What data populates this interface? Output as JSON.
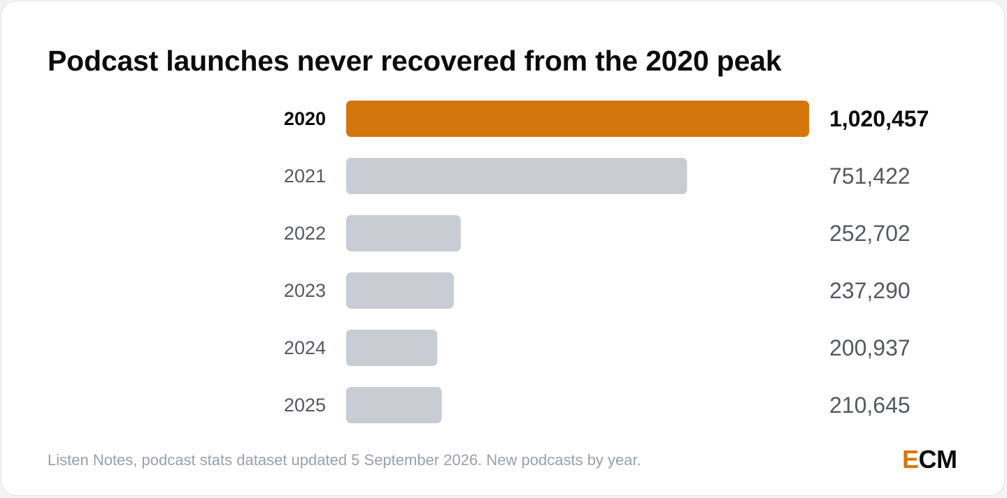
{
  "title": "Podcast launches never recovered from the 2020 peak",
  "footer": "Listen Notes, podcast stats dataset updated 5 September 2026. New podcasts by year.",
  "logo": {
    "first": "E",
    "rest": "CM"
  },
  "colors": {
    "highlight": "#d4760b",
    "bar": "#c9ccd3",
    "highlight_text": "#0b0b0d",
    "label_text": "#555860"
  },
  "chart_data": {
    "type": "bar",
    "orientation": "horizontal",
    "categories": [
      "2020",
      "2021",
      "2022",
      "2023",
      "2024",
      "2025"
    ],
    "values": [
      1020457,
      751422,
      252702,
      237290,
      200937,
      210645
    ],
    "value_labels": [
      "1,020,457",
      "751,422",
      "252,702",
      "237,290",
      "200,937",
      "210,645"
    ],
    "highlight_index": 0,
    "xlim": [
      0,
      1020457
    ],
    "grid": false,
    "legend": "none"
  }
}
